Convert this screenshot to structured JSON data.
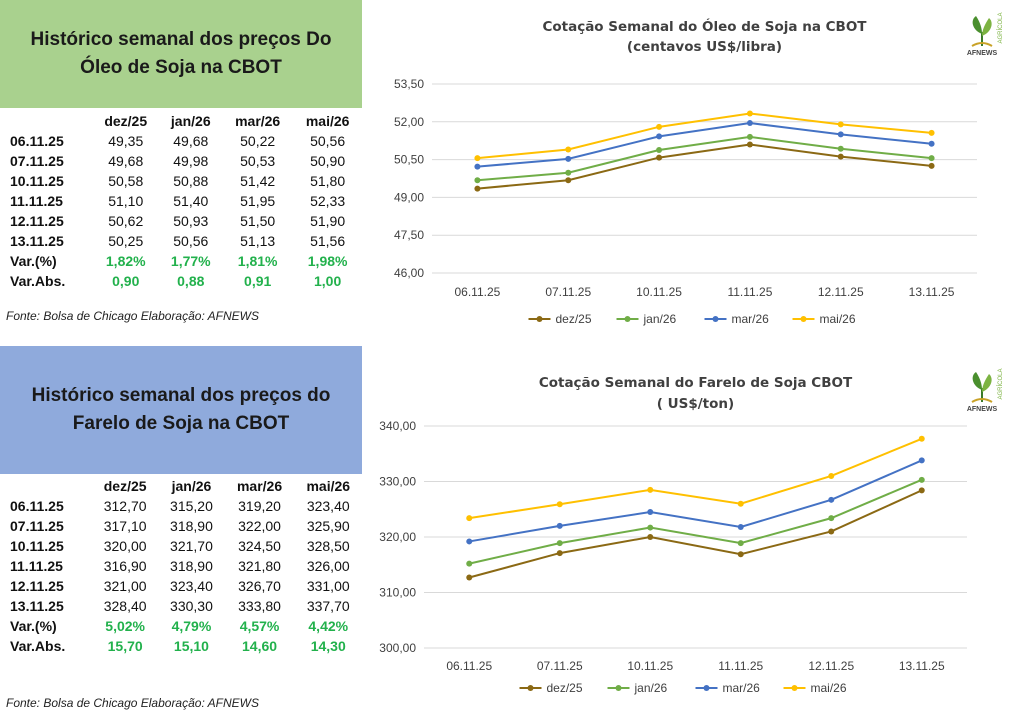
{
  "oil": {
    "heading": "Histórico semanal dos preços Do Óleo de Soja na CBOT",
    "table": {
      "columns": [
        "dez/25",
        "jan/26",
        "mar/26",
        "mai/26"
      ],
      "rows": [
        {
          "date": "06.11.25",
          "values": [
            "49,35",
            "49,68",
            "50,22",
            "50,56"
          ]
        },
        {
          "date": "07.11.25",
          "values": [
            "49,68",
            "49,98",
            "50,53",
            "50,90"
          ]
        },
        {
          "date": "10.11.25",
          "values": [
            "50,58",
            "50,88",
            "51,42",
            "51,80"
          ]
        },
        {
          "date": "11.11.25",
          "values": [
            "51,10",
            "51,40",
            "51,95",
            "52,33"
          ]
        },
        {
          "date": "12.11.25",
          "values": [
            "50,62",
            "50,93",
            "51,50",
            "51,90"
          ]
        },
        {
          "date": "13.11.25",
          "values": [
            "50,25",
            "50,56",
            "51,13",
            "51,56"
          ]
        }
      ],
      "var_pct": {
        "label": "Var.(%)",
        "values": [
          "1,82%",
          "1,77%",
          "1,81%",
          "1,98%"
        ]
      },
      "var_abs": {
        "label": "Var.Abs.",
        "values": [
          "0,90",
          "0,88",
          "0,91",
          "1,00"
        ]
      }
    },
    "source": "Fonte: Bolsa de Chicago Elaboração: AFNEWS"
  },
  "meal": {
    "heading": "Histórico semanal dos preços do Farelo de Soja na CBOT",
    "table": {
      "columns": [
        "dez/25",
        "jan/26",
        "mar/26",
        "mai/26"
      ],
      "rows": [
        {
          "date": "06.11.25",
          "values": [
            "312,70",
            "315,20",
            "319,20",
            "323,40"
          ]
        },
        {
          "date": "07.11.25",
          "values": [
            "317,10",
            "318,90",
            "322,00",
            "325,90"
          ]
        },
        {
          "date": "10.11.25",
          "values": [
            "320,00",
            "321,70",
            "324,50",
            "328,50"
          ]
        },
        {
          "date": "11.11.25",
          "values": [
            "316,90",
            "318,90",
            "321,80",
            "326,00"
          ]
        },
        {
          "date": "12.11.25",
          "values": [
            "321,00",
            "323,40",
            "326,70",
            "331,00"
          ]
        },
        {
          "date": "13.11.25",
          "values": [
            "328,40",
            "330,30",
            "333,80",
            "337,70"
          ]
        }
      ],
      "var_pct": {
        "label": "Var.(%)",
        "values": [
          "5,02%",
          "4,79%",
          "4,57%",
          "4,42%"
        ]
      },
      "var_abs": {
        "label": "Var.Abs.",
        "values": [
          "15,70",
          "15,10",
          "14,60",
          "14,30"
        ]
      }
    },
    "source": "Fonte: Bolsa de Chicago Elaboração: AFNEWS"
  },
  "logo": {
    "name": "AFNEWS",
    "sub": "AGRÍCOLA"
  },
  "colors": {
    "dez/25": "#8b6914",
    "jan/26": "#70ad47",
    "mar/26": "#4472c4",
    "mai/26": "#ffc000",
    "oil_heading_bg": "#a9d18e",
    "meal_heading_bg": "#8faadc",
    "var_green": "#22b14c"
  },
  "chart_data": [
    {
      "id": "oil",
      "type": "line",
      "title": "Cotação Semanal do Óleo de Soja na CBOT",
      "subtitle": "(centavos US$/libra)",
      "categories": [
        "06.11.25",
        "07.11.25",
        "10.11.25",
        "11.11.25",
        "12.11.25",
        "13.11.25"
      ],
      "ylim": [
        46,
        53.5
      ],
      "yticks": [
        46,
        47.5,
        49,
        50.5,
        52,
        53.5
      ],
      "ytick_labels": [
        "46,00",
        "47,50",
        "49,00",
        "50,50",
        "52,00",
        "53,50"
      ],
      "grid": true,
      "legend": "bottom",
      "series": [
        {
          "name": "dez/25",
          "values": [
            49.35,
            49.68,
            50.58,
            51.1,
            50.62,
            50.25
          ]
        },
        {
          "name": "jan/26",
          "values": [
            49.68,
            49.98,
            50.88,
            51.4,
            50.93,
            50.56
          ]
        },
        {
          "name": "mar/26",
          "values": [
            50.22,
            50.53,
            51.42,
            51.95,
            51.5,
            51.13
          ]
        },
        {
          "name": "mai/26",
          "values": [
            50.56,
            50.9,
            51.8,
            52.33,
            51.9,
            51.56
          ]
        }
      ]
    },
    {
      "id": "meal",
      "type": "line",
      "title": "Cotação Semanal do Farelo de Soja CBOT",
      "subtitle": "( US$/ton)",
      "categories": [
        "06.11.25",
        "07.11.25",
        "10.11.25",
        "11.11.25",
        "12.11.25",
        "13.11.25"
      ],
      "ylim": [
        300,
        340
      ],
      "yticks": [
        300,
        310,
        320,
        330,
        340
      ],
      "ytick_labels": [
        "300,00",
        "310,00",
        "320,00",
        "330,00",
        "340,00"
      ],
      "grid": true,
      "legend": "bottom",
      "series": [
        {
          "name": "dez/25",
          "values": [
            312.7,
            317.1,
            320.0,
            316.9,
            321.0,
            328.4
          ]
        },
        {
          "name": "jan/26",
          "values": [
            315.2,
            318.9,
            321.7,
            318.9,
            323.4,
            330.3
          ]
        },
        {
          "name": "mar/26",
          "values": [
            319.2,
            322.0,
            324.5,
            321.8,
            326.7,
            333.8
          ]
        },
        {
          "name": "mai/26",
          "values": [
            323.4,
            325.9,
            328.5,
            326.0,
            331.0,
            337.7
          ]
        }
      ]
    }
  ]
}
